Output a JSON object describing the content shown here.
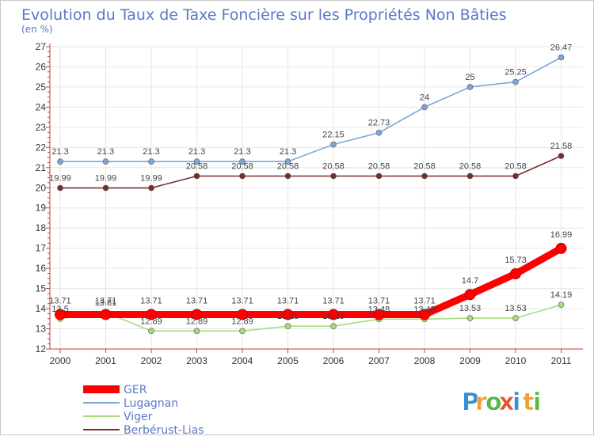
{
  "chart_data": {
    "type": "line",
    "title": "Evolution du Taux de Taxe Foncière sur les Propriétés Non Bâties",
    "subtitle": "(en %)",
    "xlabel": "",
    "ylabel": "(en %)",
    "ylim": [
      12,
      27
    ],
    "yticks": [
      "12",
      "13",
      "14",
      "15",
      "16",
      "17",
      "18",
      "19",
      "20",
      "21",
      "22",
      "23",
      "24",
      "25",
      "26",
      "27"
    ],
    "categories": [
      "2000",
      "2001",
      "2002",
      "2003",
      "2004",
      "2005",
      "2006",
      "2007",
      "2008",
      "2009",
      "2010",
      "2011"
    ],
    "grid": true,
    "legend_position": "bottom-left",
    "series": [
      {
        "name": "GER",
        "color": "#ff0000",
        "values": [
          13.71,
          13.71,
          13.71,
          13.71,
          13.71,
          13.71,
          13.71,
          13.71,
          13.71,
          14.7,
          15.73,
          16.99
        ],
        "labels": [
          "13.71",
          "13.71",
          "13.71",
          "13.71",
          "13.71",
          "13.71",
          "13.71",
          "13.71",
          "13.71",
          "14.7",
          "15.73",
          "16.99"
        ]
      },
      {
        "name": "Lugagnan",
        "color": "#7ba7d8",
        "values": [
          21.3,
          21.3,
          21.3,
          21.3,
          21.3,
          21.3,
          22.15,
          22.73,
          24,
          25,
          25.25,
          26.47
        ],
        "labels": [
          "21.3",
          "21.3",
          "21.3",
          "21.3",
          "21.3",
          "21.3",
          "22.15",
          "22.73",
          "24",
          "25",
          "25.25",
          "26.47"
        ]
      },
      {
        "name": "Viger",
        "color": "#a8dc7c",
        "values": [
          13.5,
          13.81,
          12.89,
          12.89,
          12.89,
          13.13,
          13.13,
          13.48,
          13.48,
          13.53,
          13.53,
          14.19
        ],
        "labels": [
          "13.5",
          "13.81",
          "12.89",
          "12.89",
          "12.89",
          "13.13",
          "13.13",
          "13.48",
          "13.48",
          "13.53",
          "13.53",
          "14.19"
        ]
      },
      {
        "name": "Berbérust-Lias",
        "color": "#7a2c2c",
        "values": [
          19.99,
          19.99,
          19.99,
          20.58,
          20.58,
          20.58,
          20.58,
          20.58,
          20.58,
          20.58,
          20.58,
          21.58
        ],
        "labels": [
          "19.99",
          "19.99",
          "19.99",
          "20.58",
          "20.58",
          "20.58",
          "20.58",
          "20.58",
          "20.58",
          "20.58",
          "20.58",
          "21.58"
        ]
      }
    ]
  },
  "logo": {
    "letters": [
      "P",
      "r",
      "o",
      "x",
      "i",
      "t",
      "i"
    ],
    "colors": [
      "#3a8fd6",
      "#f0a030",
      "#56b848",
      "#e8532a",
      "#3a8fd6",
      "#f0a030",
      "#56b848"
    ]
  },
  "colors": {
    "title": "#5b78c9",
    "grid": "#e6e6e6",
    "axis": "#c04040"
  }
}
